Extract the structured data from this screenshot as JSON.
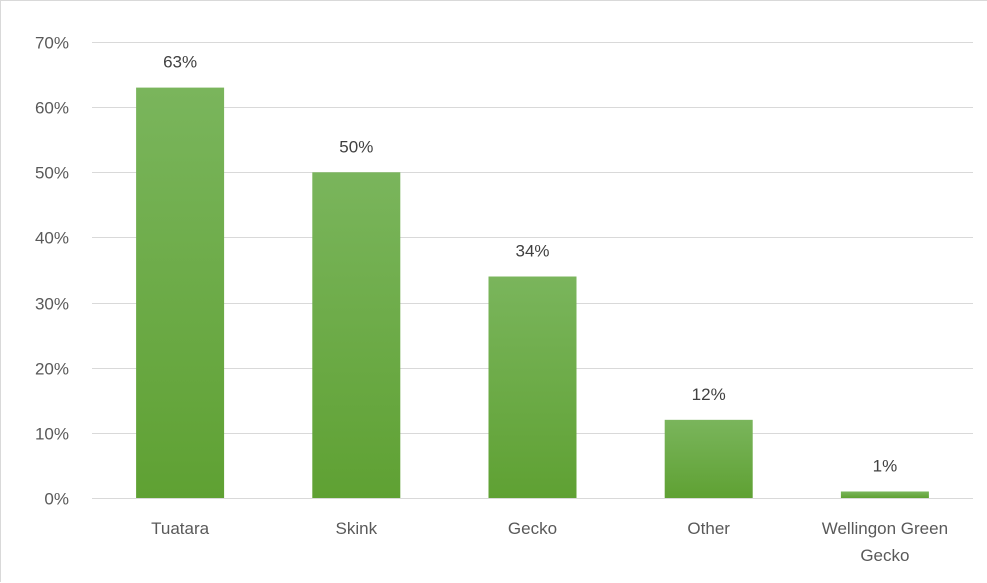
{
  "chart_data": {
    "type": "bar",
    "categories": [
      "Tuatara",
      "Skink",
      "Gecko",
      "Other",
      "Wellingon Green Gecko"
    ],
    "values": [
      63,
      50,
      34,
      12,
      1
    ],
    "value_labels": [
      "63%",
      "50%",
      "34%",
      "12%",
      "1%"
    ],
    "ylim": [
      0,
      70
    ],
    "yticks": [
      0,
      10,
      20,
      30,
      40,
      50,
      60,
      70
    ],
    "ytick_labels": [
      "0%",
      "10%",
      "20%",
      "30%",
      "40%",
      "50%",
      "60%",
      "70%"
    ],
    "grid": true,
    "legend": "none",
    "title": "",
    "xlabel": "",
    "ylabel": "",
    "colors": {
      "bar_top": "#7ab55c",
      "bar_bottom": "#5fa133",
      "grid": "#d9d9d9",
      "axis_text": "#595959",
      "label_text": "#404040"
    }
  }
}
